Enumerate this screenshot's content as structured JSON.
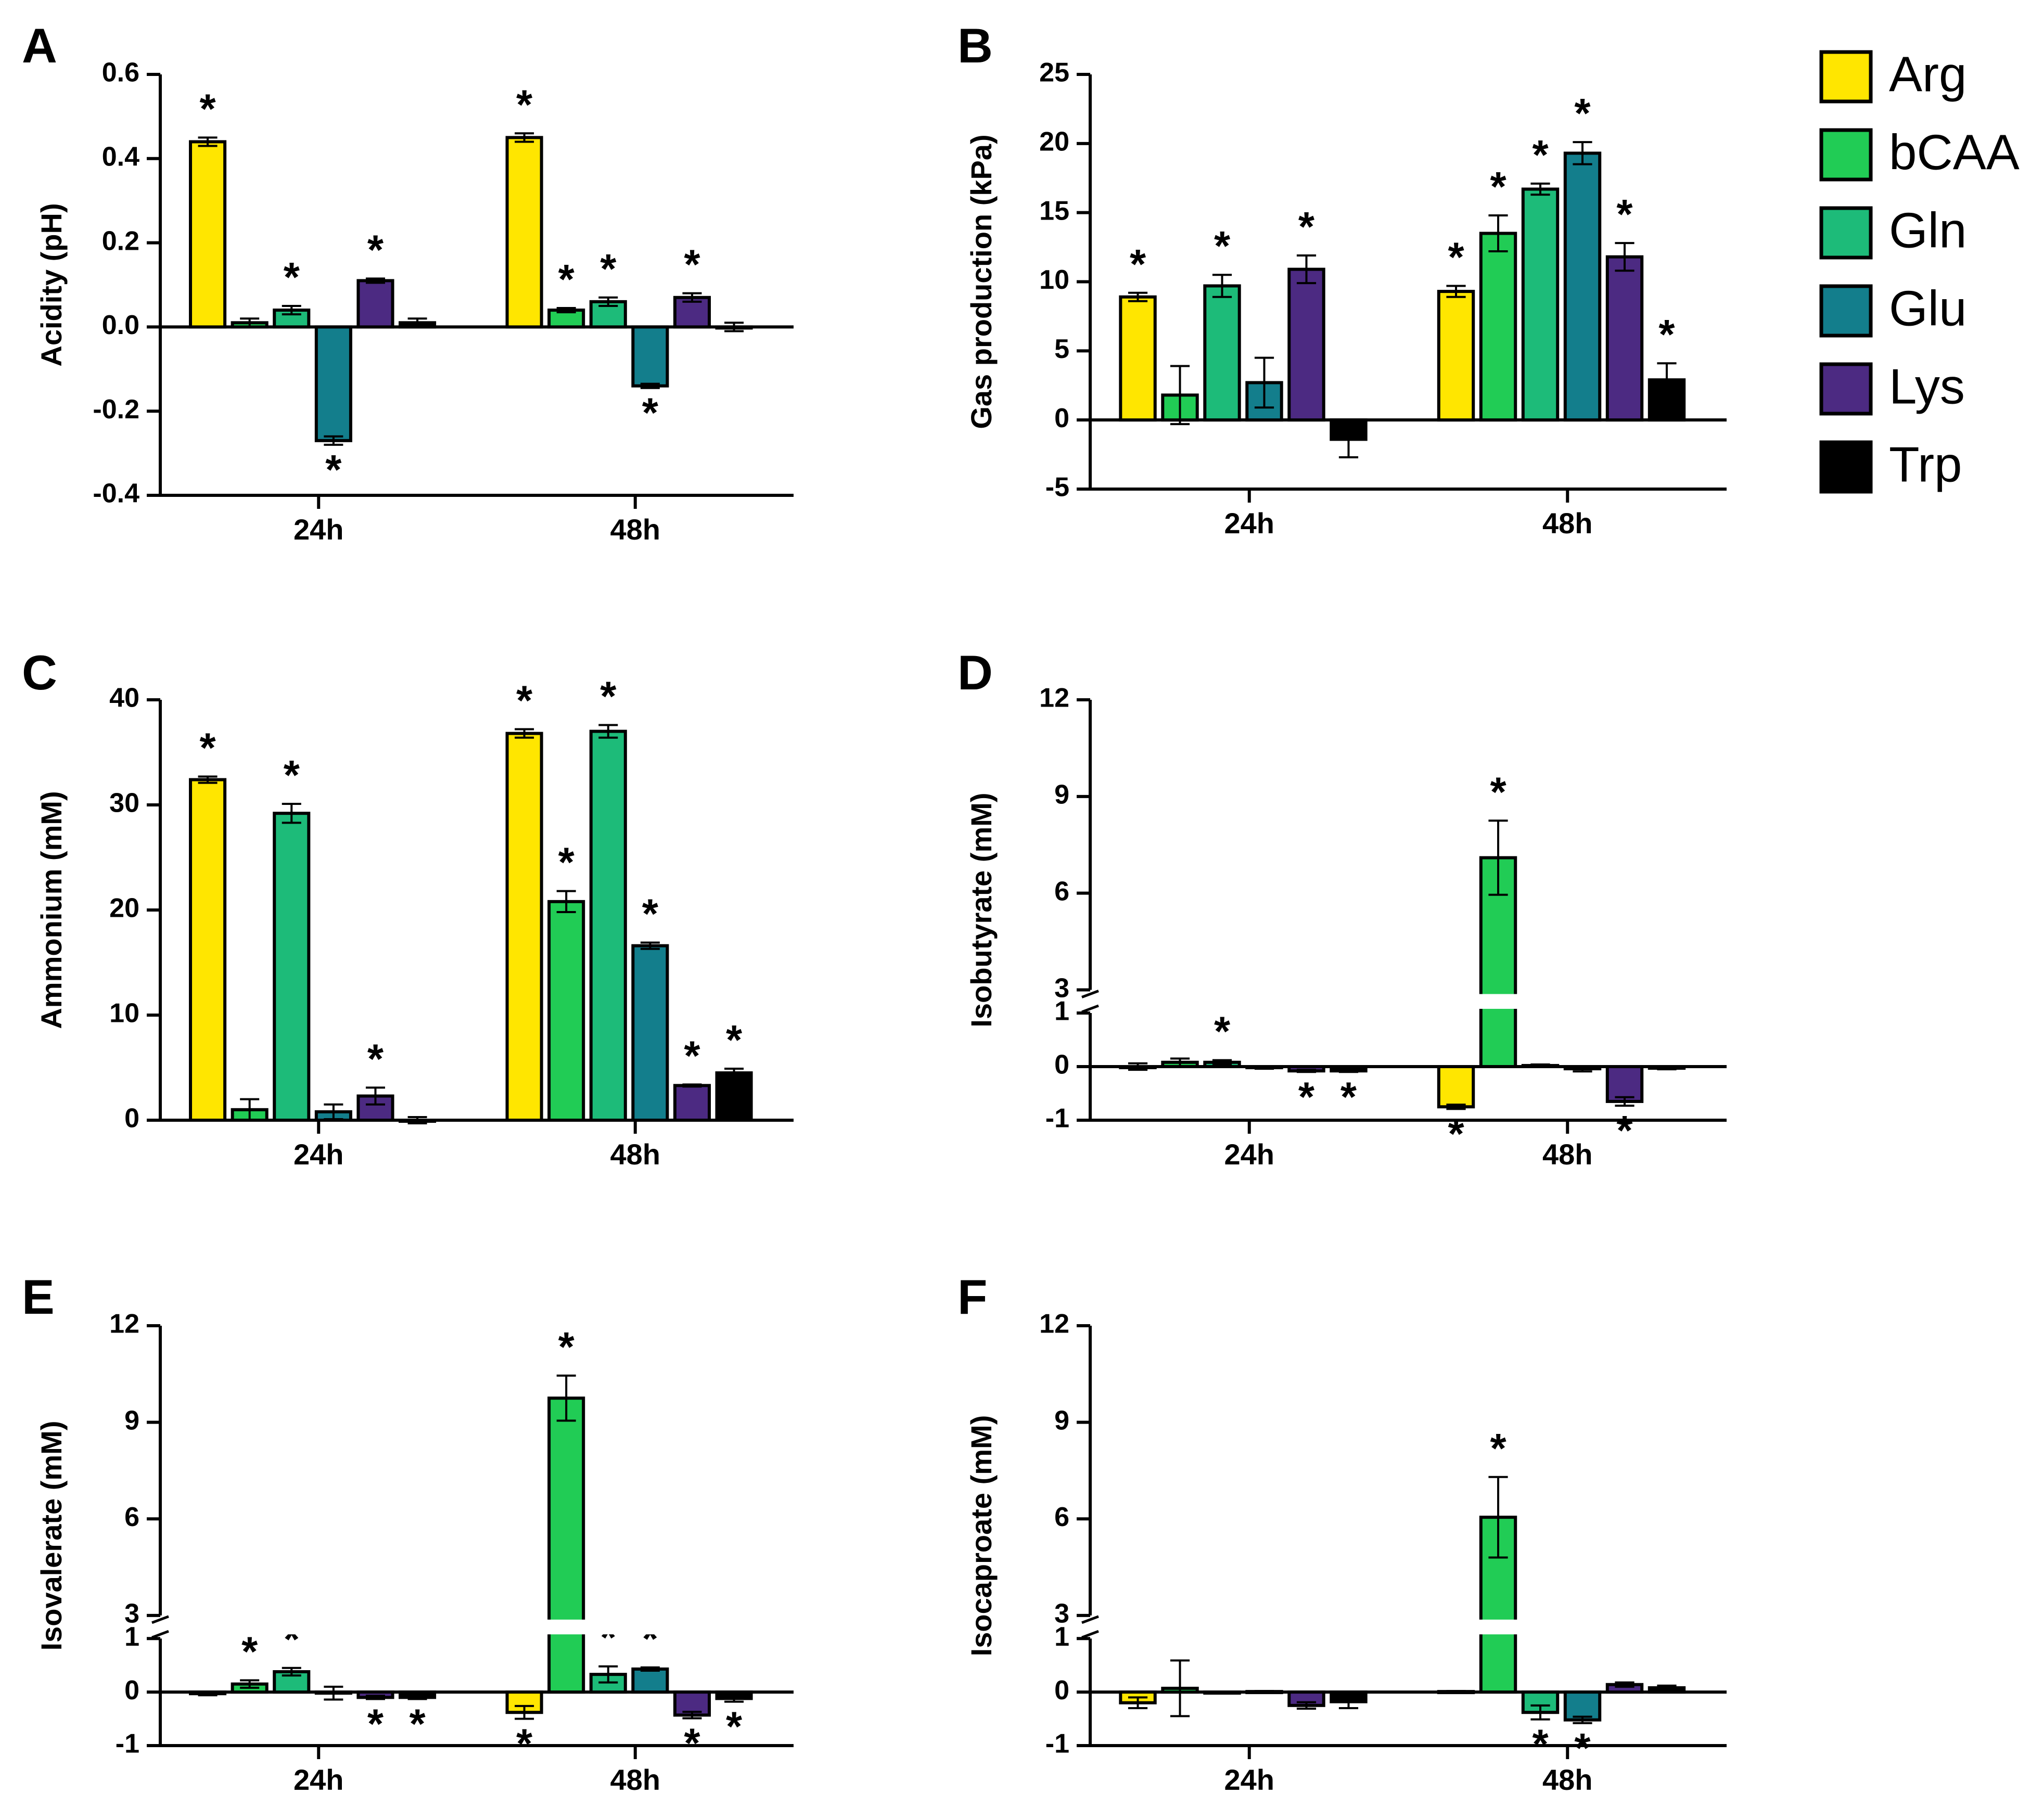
{
  "chart_data": [
    {
      "panel": "A",
      "type": "bar",
      "ylabel": "Acidity (pH)",
      "categories": [
        "24h",
        "48h"
      ],
      "ylim": [
        -0.4,
        0.6
      ],
      "yticks": [
        -0.4,
        -0.2,
        0.0,
        0.2,
        0.4,
        0.6
      ],
      "tick_labels": [
        "-0.4",
        "-0.2",
        "0.0",
        "0.2",
        "0.4",
        "0.6"
      ],
      "series": [
        {
          "name": "Arg",
          "values": [
            0.44,
            0.45
          ],
          "errors": [
            0.01,
            0.01
          ],
          "sig": [
            true,
            true
          ]
        },
        {
          "name": "bCAA",
          "values": [
            0.01,
            0.04
          ],
          "errors": [
            0.01,
            0.005
          ],
          "sig": [
            false,
            true
          ]
        },
        {
          "name": "Gln",
          "values": [
            0.04,
            0.06
          ],
          "errors": [
            0.01,
            0.01
          ],
          "sig": [
            true,
            true
          ]
        },
        {
          "name": "Glu",
          "values": [
            -0.27,
            -0.14
          ],
          "errors": [
            0.01,
            0.005
          ],
          "sig": [
            true,
            true
          ]
        },
        {
          "name": "Lys",
          "values": [
            0.11,
            0.07
          ],
          "errors": [
            0.005,
            0.01
          ],
          "sig": [
            true,
            true
          ]
        },
        {
          "name": "Trp",
          "values": [
            0.01,
            0.0
          ],
          "errors": [
            0.01,
            0.01
          ],
          "sig": [
            false,
            false
          ]
        }
      ]
    },
    {
      "panel": "B",
      "type": "bar",
      "ylabel": "Gas production (kPa)",
      "categories": [
        "24h",
        "48h"
      ],
      "ylim": [
        -5,
        25
      ],
      "yticks": [
        -5,
        0,
        5,
        10,
        15,
        20,
        25
      ],
      "tick_labels": [
        "-5",
        "0",
        "5",
        "10",
        "15",
        "20",
        "25"
      ],
      "series": [
        {
          "name": "Arg",
          "values": [
            8.9,
            9.3
          ],
          "errors": [
            0.3,
            0.4
          ],
          "sig": [
            true,
            true
          ]
        },
        {
          "name": "bCAA",
          "values": [
            1.8,
            13.5
          ],
          "errors": [
            2.1,
            1.3
          ],
          "sig": [
            false,
            true
          ]
        },
        {
          "name": "Gln",
          "values": [
            9.7,
            16.7
          ],
          "errors": [
            0.8,
            0.4
          ],
          "sig": [
            true,
            true
          ]
        },
        {
          "name": "Glu",
          "values": [
            2.7,
            19.3
          ],
          "errors": [
            1.8,
            0.8
          ],
          "sig": [
            false,
            true
          ]
        },
        {
          "name": "Lys",
          "values": [
            10.9,
            11.8
          ],
          "errors": [
            1.0,
            1.0
          ],
          "sig": [
            true,
            true
          ]
        },
        {
          "name": "Trp",
          "values": [
            -1.4,
            2.9
          ],
          "errors": [
            1.3,
            1.2
          ],
          "sig": [
            false,
            true
          ]
        }
      ]
    },
    {
      "panel": "C",
      "type": "bar",
      "ylabel": "Ammonium (mM)",
      "categories": [
        "24h",
        "48h"
      ],
      "ylim": [
        0,
        40
      ],
      "yticks": [
        0,
        10,
        20,
        30,
        40
      ],
      "tick_labels": [
        "0",
        "10",
        "20",
        "30",
        "40"
      ],
      "series": [
        {
          "name": "Arg",
          "values": [
            32.4,
            36.8
          ],
          "errors": [
            0.3,
            0.4
          ],
          "sig": [
            true,
            true
          ]
        },
        {
          "name": "bCAA",
          "values": [
            1.0,
            20.8
          ],
          "errors": [
            1.0,
            1.0
          ],
          "sig": [
            false,
            true
          ]
        },
        {
          "name": "Gln",
          "values": [
            29.2,
            37.0
          ],
          "errors": [
            0.9,
            0.6
          ],
          "sig": [
            true,
            true
          ]
        },
        {
          "name": "Glu",
          "values": [
            0.8,
            16.6
          ],
          "errors": [
            0.7,
            0.3
          ],
          "sig": [
            false,
            true
          ]
        },
        {
          "name": "Lys",
          "values": [
            2.3,
            3.3
          ],
          "errors": [
            0.8,
            0.1
          ],
          "sig": [
            true,
            true
          ]
        },
        {
          "name": "Trp",
          "values": [
            0.0,
            4.5
          ],
          "errors": [
            0.3,
            0.4
          ],
          "sig": [
            false,
            true
          ]
        }
      ]
    },
    {
      "panel": "D",
      "type": "bar",
      "ylabel": "Isobutyrate (mM)",
      "categories": [
        "24h",
        "48h"
      ],
      "ylim": [
        -1,
        12
      ],
      "axis_break": [
        1,
        3
      ],
      "yticks": [
        -1,
        0,
        1,
        3,
        6,
        9,
        12
      ],
      "tick_labels": [
        "-1",
        "0",
        "1",
        "3",
        "6",
        "9",
        "12"
      ],
      "series": [
        {
          "name": "Arg",
          "values": [
            0.0,
            -0.75
          ],
          "errors": [
            0.06,
            0.04
          ],
          "sig": [
            false,
            true
          ]
        },
        {
          "name": "bCAA",
          "values": [
            0.08,
            7.1
          ],
          "errors": [
            0.07,
            1.15
          ],
          "sig": [
            false,
            true
          ]
        },
        {
          "name": "Gln",
          "values": [
            0.08,
            0.02
          ],
          "errors": [
            0.04,
            0.02
          ],
          "sig": [
            true,
            false
          ]
        },
        {
          "name": "Glu",
          "values": [
            -0.02,
            -0.04
          ],
          "errors": [
            0.02,
            0.05
          ],
          "sig": [
            false,
            false
          ]
        },
        {
          "name": "Lys",
          "values": [
            -0.08,
            -0.65
          ],
          "errors": [
            0.02,
            0.08
          ],
          "sig": [
            true,
            true
          ]
        },
        {
          "name": "Trp",
          "values": [
            -0.08,
            -0.03
          ],
          "errors": [
            0.02,
            0.02
          ],
          "sig": [
            true,
            false
          ]
        }
      ]
    },
    {
      "panel": "E",
      "type": "bar",
      "ylabel": "Isovalerate (mM)",
      "categories": [
        "24h",
        "48h"
      ],
      "ylim": [
        -1,
        12
      ],
      "axis_break": [
        1,
        3
      ],
      "yticks": [
        -1,
        0,
        1,
        3,
        6,
        9,
        12
      ],
      "tick_labels": [
        "-1",
        "0",
        "1",
        "3",
        "6",
        "9",
        "12"
      ],
      "series": [
        {
          "name": "Arg",
          "values": [
            -0.03,
            -0.38
          ],
          "errors": [
            0.03,
            0.12
          ],
          "sig": [
            false,
            true
          ]
        },
        {
          "name": "bCAA",
          "values": [
            0.15,
            9.75
          ],
          "errors": [
            0.07,
            0.7
          ],
          "sig": [
            true,
            true
          ]
        },
        {
          "name": "Gln",
          "values": [
            0.38,
            0.33
          ],
          "errors": [
            0.07,
            0.15
          ],
          "sig": [
            true,
            true
          ]
        },
        {
          "name": "Glu",
          "values": [
            -0.02,
            0.43
          ],
          "errors": [
            0.12,
            0.03
          ],
          "sig": [
            false,
            true
          ]
        },
        {
          "name": "Lys",
          "values": [
            -0.1,
            -0.43
          ],
          "errors": [
            0.03,
            0.06
          ],
          "sig": [
            true,
            true
          ]
        },
        {
          "name": "Trp",
          "values": [
            -0.1,
            -0.12
          ],
          "errors": [
            0.03,
            0.06
          ],
          "sig": [
            true,
            true
          ]
        }
      ]
    },
    {
      "panel": "F",
      "type": "bar",
      "ylabel": "Isocaproate (mM)",
      "categories": [
        "24h",
        "48h"
      ],
      "ylim": [
        -1,
        12
      ],
      "axis_break": [
        1,
        3
      ],
      "yticks": [
        -1,
        0,
        1,
        3,
        6,
        9,
        12
      ],
      "tick_labels": [
        "-1",
        "0",
        "1",
        "3",
        "6",
        "9",
        "12"
      ],
      "series": [
        {
          "name": "Arg",
          "values": [
            -0.2,
            0.01
          ],
          "errors": [
            0.1,
            0.01
          ],
          "sig": [
            false,
            false
          ]
        },
        {
          "name": "bCAA",
          "values": [
            0.07,
            6.05
          ],
          "errors": [
            0.52,
            1.25
          ],
          "sig": [
            false,
            true
          ]
        },
        {
          "name": "Gln",
          "values": [
            0.0,
            -0.38
          ],
          "errors": [
            0.0,
            0.13
          ],
          "sig": [
            false,
            true
          ]
        },
        {
          "name": "Glu",
          "values": [
            0.01,
            -0.52
          ],
          "errors": [
            0.01,
            0.06
          ],
          "sig": [
            false,
            true
          ]
        },
        {
          "name": "Lys",
          "values": [
            -0.25,
            0.14
          ],
          "errors": [
            0.06,
            0.04
          ],
          "sig": [
            false,
            false
          ]
        },
        {
          "name": "Trp",
          "values": [
            -0.18,
            0.08
          ],
          "errors": [
            0.12,
            0.04
          ],
          "sig": [
            false,
            false
          ]
        }
      ]
    }
  ],
  "legend": [
    {
      "name": "Arg",
      "color": "#FFE600"
    },
    {
      "name": "bCAA",
      "color": "#21CC55"
    },
    {
      "name": "Gln",
      "color": "#1DBB79"
    },
    {
      "name": "Glu",
      "color": "#137E8C"
    },
    {
      "name": "Lys",
      "color": "#4C2A82"
    },
    {
      "name": "Trp",
      "color": "#000000"
    }
  ],
  "significance_mark": "*"
}
